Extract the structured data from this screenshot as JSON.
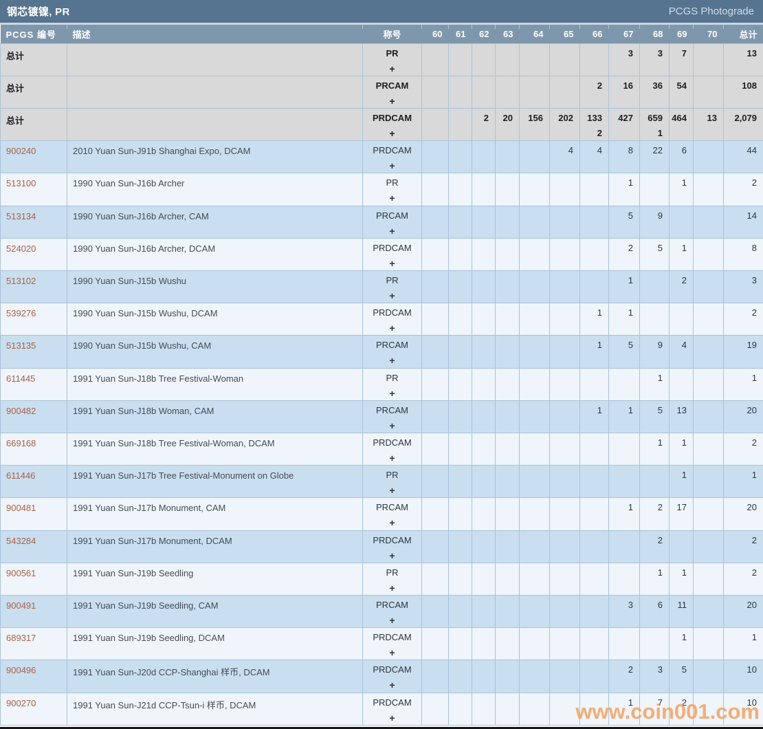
{
  "title_bar": {
    "title": "钢芯镀镍, PR",
    "right_link": "PCGS Photograde"
  },
  "colors": {
    "title_bar_bg": "#567390",
    "table_header_bg": "#7e97ac",
    "total_row_bg": "#d9d9d9",
    "row_blue_bg": "#c9dff0",
    "row_white_bg": "#eff5fa",
    "cell_border": "#a9c2d8",
    "pcgs_link": "#ab6046",
    "watermark": "#f39e5a"
  },
  "table": {
    "columns": {
      "pcgs": "PCGS 编号",
      "desc": "描述",
      "designation": "称号",
      "grades": [
        "60",
        "61",
        "62",
        "63",
        "64",
        "65",
        "66",
        "67",
        "68",
        "69",
        "70"
      ],
      "total": "总计"
    },
    "plus_symbol": "+",
    "rows": [
      {
        "pcgs": "总计",
        "total_row": true,
        "desc": "",
        "designation": "PR",
        "grades": [
          "",
          "",
          "",
          "",
          "",
          "",
          "",
          "3",
          "3",
          "7",
          ""
        ],
        "plus": [
          "",
          "",
          "",
          "",
          "",
          "",
          "",
          "",
          "",
          "",
          ""
        ],
        "total": "13"
      },
      {
        "pcgs": "总计",
        "total_row": true,
        "desc": "",
        "designation": "PRCAM",
        "grades": [
          "",
          "",
          "",
          "",
          "",
          "",
          "2",
          "16",
          "36",
          "54",
          ""
        ],
        "plus": [
          "",
          "",
          "",
          "",
          "",
          "",
          "",
          "",
          "",
          "",
          ""
        ],
        "total": "108"
      },
      {
        "pcgs": "总计",
        "total_row": true,
        "desc": "",
        "designation": "PRDCAM",
        "grades": [
          "",
          "",
          "2",
          "20",
          "156",
          "202",
          "133",
          "427",
          "659",
          "464",
          "13"
        ],
        "plus": [
          "",
          "",
          "",
          "",
          "",
          "",
          "2",
          "",
          "1",
          "",
          ""
        ],
        "total": "2,079"
      },
      {
        "pcgs": "900240",
        "total_row": false,
        "desc": "2010 Yuan Sun-J91b Shanghai Expo, DCAM",
        "designation": "PRDCAM",
        "grades": [
          "",
          "",
          "",
          "",
          "",
          "4",
          "4",
          "8",
          "22",
          "6",
          ""
        ],
        "total": "44"
      },
      {
        "pcgs": "513100",
        "total_row": false,
        "desc": "1990 Yuan Sun-J16b Archer",
        "designation": "PR",
        "grades": [
          "",
          "",
          "",
          "",
          "",
          "",
          "",
          "1",
          "",
          "1",
          ""
        ],
        "total": "2"
      },
      {
        "pcgs": "513134",
        "total_row": false,
        "desc": "1990 Yuan Sun-J16b Archer, CAM",
        "designation": "PRCAM",
        "grades": [
          "",
          "",
          "",
          "",
          "",
          "",
          "",
          "5",
          "9",
          "",
          ""
        ],
        "total": "14"
      },
      {
        "pcgs": "524020",
        "total_row": false,
        "desc": "1990 Yuan Sun-J16b Archer, DCAM",
        "designation": "PRDCAM",
        "grades": [
          "",
          "",
          "",
          "",
          "",
          "",
          "",
          "2",
          "5",
          "1",
          ""
        ],
        "total": "8"
      },
      {
        "pcgs": "513102",
        "total_row": false,
        "desc": "1990 Yuan Sun-J15b Wushu",
        "designation": "PR",
        "grades": [
          "",
          "",
          "",
          "",
          "",
          "",
          "",
          "1",
          "",
          "2",
          ""
        ],
        "total": "3"
      },
      {
        "pcgs": "539276",
        "total_row": false,
        "desc": "1990 Yuan Sun-J15b Wushu, DCAM",
        "designation": "PRDCAM",
        "grades": [
          "",
          "",
          "",
          "",
          "",
          "",
          "1",
          "1",
          "",
          "",
          ""
        ],
        "total": "2"
      },
      {
        "pcgs": "513135",
        "total_row": false,
        "desc": "1990 Yuan Sun-J15b Wushu, CAM",
        "designation": "PRCAM",
        "grades": [
          "",
          "",
          "",
          "",
          "",
          "",
          "1",
          "5",
          "9",
          "4",
          ""
        ],
        "total": "19"
      },
      {
        "pcgs": "611445",
        "total_row": false,
        "desc": "1991 Yuan Sun-J18b Tree Festival-Woman",
        "designation": "PR",
        "grades": [
          "",
          "",
          "",
          "",
          "",
          "",
          "",
          "",
          "1",
          "",
          ""
        ],
        "total": "1"
      },
      {
        "pcgs": "900482",
        "total_row": false,
        "desc": "1991 Yuan Sun-J18b Woman, CAM",
        "designation": "PRCAM",
        "grades": [
          "",
          "",
          "",
          "",
          "",
          "",
          "1",
          "1",
          "5",
          "13",
          ""
        ],
        "total": "20"
      },
      {
        "pcgs": "669168",
        "total_row": false,
        "desc": "1991 Yuan Sun-J18b Tree Festival-Woman, DCAM",
        "designation": "PRDCAM",
        "grades": [
          "",
          "",
          "",
          "",
          "",
          "",
          "",
          "",
          "1",
          "1",
          ""
        ],
        "total": "2"
      },
      {
        "pcgs": "611446",
        "total_row": false,
        "desc": "1991 Yuan Sun-J17b Tree Festival-Monument on Globe",
        "designation": "PR",
        "grades": [
          "",
          "",
          "",
          "",
          "",
          "",
          "",
          "",
          "",
          "1",
          ""
        ],
        "total": "1"
      },
      {
        "pcgs": "900481",
        "total_row": false,
        "desc": "1991 Yuan Sun-J17b Monument, CAM",
        "designation": "PRCAM",
        "grades": [
          "",
          "",
          "",
          "",
          "",
          "",
          "",
          "1",
          "2",
          "17",
          ""
        ],
        "total": "20"
      },
      {
        "pcgs": "543284",
        "total_row": false,
        "desc": "1991 Yuan Sun-J17b Monument, DCAM",
        "designation": "PRDCAM",
        "grades": [
          "",
          "",
          "",
          "",
          "",
          "",
          "",
          "",
          "2",
          "",
          ""
        ],
        "total": "2"
      },
      {
        "pcgs": "900561",
        "total_row": false,
        "desc": "1991 Yuan Sun-J19b Seedling",
        "designation": "PR",
        "grades": [
          "",
          "",
          "",
          "",
          "",
          "",
          "",
          "",
          "1",
          "1",
          ""
        ],
        "total": "2"
      },
      {
        "pcgs": "900491",
        "total_row": false,
        "desc": "1991 Yuan Sun-J19b Seedling, CAM",
        "designation": "PRCAM",
        "grades": [
          "",
          "",
          "",
          "",
          "",
          "",
          "",
          "3",
          "6",
          "11",
          ""
        ],
        "total": "20"
      },
      {
        "pcgs": "689317",
        "total_row": false,
        "desc": "1991 Yuan Sun-J19b Seedling, DCAM",
        "designation": "PRDCAM",
        "grades": [
          "",
          "",
          "",
          "",
          "",
          "",
          "",
          "",
          "",
          "1",
          ""
        ],
        "total": "1"
      },
      {
        "pcgs": "900496",
        "total_row": false,
        "desc": "1991 Yuan Sun-J20d CCP-Shanghai 样币, DCAM",
        "designation": "PRDCAM",
        "grades": [
          "",
          "",
          "",
          "",
          "",
          "",
          "",
          "2",
          "3",
          "5",
          ""
        ],
        "total": "10"
      },
      {
        "pcgs": "900270",
        "total_row": false,
        "desc": "1991 Yuan Sun-J21d CCP-Tsun-i 样币, DCAM",
        "designation": "PRDCAM",
        "grades": [
          "",
          "",
          "",
          "",
          "",
          "",
          "",
          "1",
          "7",
          "2",
          ""
        ],
        "total": "10"
      }
    ]
  },
  "watermark": "www.coin001.com"
}
